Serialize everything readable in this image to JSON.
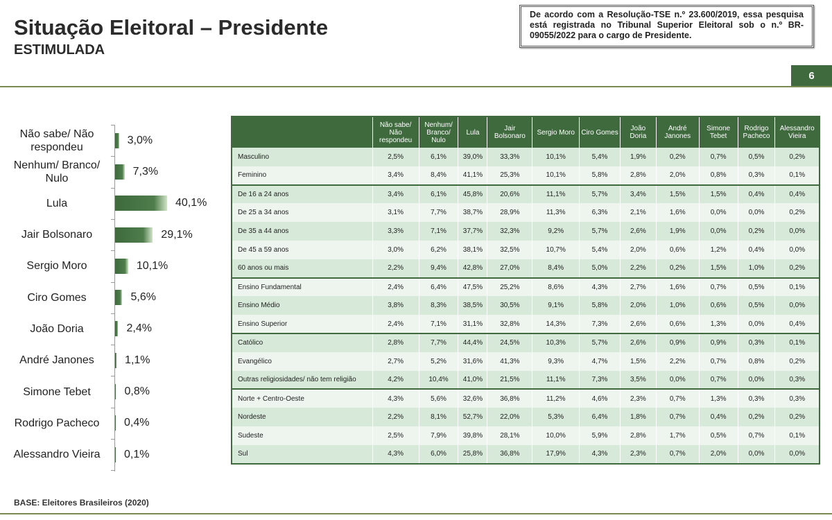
{
  "header": {
    "title": "Situação Eleitoral – Presidente",
    "subtitle": "ESTIMULADA",
    "notice": "De acordo com a Resolução-TSE n.º 23.600/2019, essa pesquisa está registrada no Tribunal Superior Eleitoral sob o n.º BR-09055/2022 para o cargo de Presidente.",
    "page_number": "6"
  },
  "colors": {
    "accent": "#3f6a3e",
    "row_light": "#edf5ee",
    "row_dark": "#d7e9d8"
  },
  "chart_data": {
    "type": "bar",
    "orientation": "horizontal",
    "categories": [
      "Não sabe/ Não respondeu",
      "Nenhum/ Branco/ Nulo",
      "Lula",
      "Jair Bolsonaro",
      "Sergio Moro",
      "Ciro Gomes",
      "João Doria",
      "André Janones",
      "Simone Tebet",
      "Rodrigo Pacheco",
      "Alessandro Vieira"
    ],
    "values": [
      3.0,
      7.3,
      40.1,
      29.1,
      10.1,
      5.6,
      2.4,
      1.1,
      0.8,
      0.4,
      0.1
    ],
    "labels": [
      "3,0%",
      "7,3%",
      "40,1%",
      "29,1%",
      "10,1%",
      "5,6%",
      "2,4%",
      "1,1%",
      "0,8%",
      "0,4%",
      "0,1%"
    ],
    "unit": "%"
  },
  "table": {
    "columns": [
      "",
      "Não sabe/ Não respondeu",
      "Nenhum/ Branco/ Nulo",
      "Lula",
      "Jair Bolsonaro",
      "Sergio Moro",
      "Ciro Gomes",
      "João Doria",
      "André Janones",
      "Simone Tebet",
      "Rodrigo Pacheco",
      "Alessandro Vieira"
    ],
    "rows": [
      [
        "Masculino",
        "2,5%",
        "6,1%",
        "39,0%",
        "33,3%",
        "10,1%",
        "5,4%",
        "1,9%",
        "0,2%",
        "0,7%",
        "0,5%",
        "0,2%"
      ],
      [
        "Feminino",
        "3,4%",
        "8,4%",
        "41,1%",
        "25,3%",
        "10,1%",
        "5,8%",
        "2,8%",
        "2,0%",
        "0,8%",
        "0,3%",
        "0,1%"
      ],
      [
        "De 16 a 24 anos",
        "3,4%",
        "6,1%",
        "45,8%",
        "20,6%",
        "11,1%",
        "5,7%",
        "3,4%",
        "1,5%",
        "1,5%",
        "0,4%",
        "0,4%"
      ],
      [
        "De 25 a 34 anos",
        "3,1%",
        "7,7%",
        "38,7%",
        "28,9%",
        "11,3%",
        "6,3%",
        "2,1%",
        "1,6%",
        "0,0%",
        "0,0%",
        "0,2%"
      ],
      [
        "De 35 a 44 anos",
        "3,3%",
        "7,1%",
        "37,7%",
        "32,3%",
        "9,2%",
        "5,7%",
        "2,6%",
        "1,9%",
        "0,0%",
        "0,2%",
        "0,0%"
      ],
      [
        "De 45 a 59 anos",
        "3,0%",
        "6,2%",
        "38,1%",
        "32,5%",
        "10,7%",
        "5,4%",
        "2,0%",
        "0,6%",
        "1,2%",
        "0,4%",
        "0,0%"
      ],
      [
        "60 anos ou mais",
        "2,2%",
        "9,4%",
        "42,8%",
        "27,0%",
        "8,4%",
        "5,0%",
        "2,2%",
        "0,2%",
        "1,5%",
        "1,0%",
        "0,2%"
      ],
      [
        "Ensino Fundamental",
        "2,4%",
        "6,4%",
        "47,5%",
        "25,2%",
        "8,6%",
        "4,3%",
        "2,7%",
        "1,6%",
        "0,7%",
        "0,5%",
        "0,1%"
      ],
      [
        "Ensino Médio",
        "3,8%",
        "8,3%",
        "38,5%",
        "30,5%",
        "9,1%",
        "5,8%",
        "2,0%",
        "1,0%",
        "0,6%",
        "0,5%",
        "0,0%"
      ],
      [
        "Ensino Superior",
        "2,4%",
        "7,1%",
        "31,1%",
        "32,8%",
        "14,3%",
        "7,3%",
        "2,6%",
        "0,6%",
        "1,3%",
        "0,0%",
        "0,4%"
      ],
      [
        "Católico",
        "2,8%",
        "7,7%",
        "44,4%",
        "24,5%",
        "10,3%",
        "5,7%",
        "2,6%",
        "0,9%",
        "0,9%",
        "0,3%",
        "0,1%"
      ],
      [
        "Evangélico",
        "2,7%",
        "5,2%",
        "31,6%",
        "41,3%",
        "9,3%",
        "4,7%",
        "1,5%",
        "2,2%",
        "0,7%",
        "0,8%",
        "0,2%"
      ],
      [
        "Outras religiosidades/ não tem religião",
        "4,2%",
        "10,4%",
        "41,0%",
        "21,5%",
        "11,1%",
        "7,3%",
        "3,5%",
        "0,0%",
        "0,7%",
        "0,0%",
        "0,3%"
      ],
      [
        "Norte + Centro-Oeste",
        "4,3%",
        "5,6%",
        "32,6%",
        "36,8%",
        "11,2%",
        "4,6%",
        "2,3%",
        "0,7%",
        "1,3%",
        "0,3%",
        "0,3%"
      ],
      [
        "Nordeste",
        "2,2%",
        "8,1%",
        "52,7%",
        "22,0%",
        "5,3%",
        "6,4%",
        "1,8%",
        "0,7%",
        "0,4%",
        "0,2%",
        "0,2%"
      ],
      [
        "Sudeste",
        "2,5%",
        "7,9%",
        "39,8%",
        "28,1%",
        "10,0%",
        "5,9%",
        "2,8%",
        "1,7%",
        "0,5%",
        "0,7%",
        "0,1%"
      ],
      [
        "Sul",
        "4,3%",
        "6,0%",
        "25,8%",
        "36,8%",
        "17,9%",
        "4,3%",
        "2,3%",
        "0,7%",
        "2,0%",
        "0,0%",
        "0,0%"
      ]
    ]
  },
  "footer": {
    "base": "BASE: Eleitores Brasileiros (2020)"
  }
}
